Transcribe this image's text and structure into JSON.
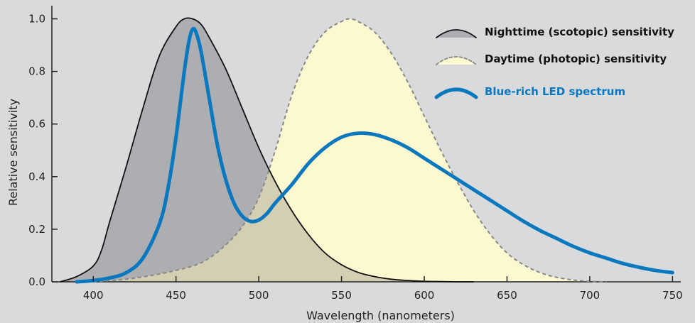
{
  "chart_data": {
    "type": "area",
    "title": "",
    "xlabel": "Wavelength (nanometers)",
    "ylabel": "Relative sensitivity",
    "xlim": [
      375,
      755
    ],
    "ylim": [
      0,
      1.05
    ],
    "x_ticks": [
      "400",
      "450",
      "500",
      "550",
      "600",
      "650",
      "700",
      "750"
    ],
    "y_ticks": [
      "0.0",
      "0.2",
      "0.4",
      "0.6",
      "0.8",
      "1.0"
    ],
    "grid": false,
    "legend_position": "top-right",
    "colors": {
      "scotopic_fill": "#adaeb2",
      "scotopic_line": "#111111",
      "photopic_fill": "#fcf8cf",
      "photopic_line": "#888888",
      "led_line": "#0a78be",
      "overlap_fill": "#d4cfb3"
    },
    "series": [
      {
        "name": "Nighttime (scotopic) sensitivity",
        "x": [
          380,
          390,
          400,
          405,
          410,
          420,
          430,
          440,
          450,
          455,
          460,
          465,
          470,
          480,
          490,
          500,
          510,
          520,
          530,
          540,
          550,
          560,
          570,
          580,
          590,
          600,
          610,
          620,
          630
        ],
        "values": [
          0.0,
          0.02,
          0.06,
          0.12,
          0.23,
          0.44,
          0.66,
          0.86,
          0.97,
          1.0,
          1.0,
          0.98,
          0.93,
          0.81,
          0.66,
          0.51,
          0.38,
          0.27,
          0.18,
          0.11,
          0.065,
          0.036,
          0.02,
          0.01,
          0.005,
          0.002,
          0.001,
          0.0,
          0.0
        ]
      },
      {
        "name": "Daytime (photopic) sensitivity",
        "x": [
          400,
          420,
          440,
          460,
          470,
          480,
          490,
          500,
          510,
          520,
          530,
          540,
          550,
          555,
          560,
          570,
          580,
          590,
          600,
          610,
          620,
          630,
          640,
          650,
          660,
          670,
          680,
          690,
          700,
          710
        ],
        "values": [
          0.0,
          0.01,
          0.03,
          0.06,
          0.09,
          0.14,
          0.21,
          0.32,
          0.5,
          0.71,
          0.86,
          0.95,
          0.99,
          1.0,
          0.99,
          0.95,
          0.87,
          0.76,
          0.63,
          0.5,
          0.38,
          0.27,
          0.18,
          0.11,
          0.065,
          0.035,
          0.017,
          0.007,
          0.002,
          0.0
        ]
      },
      {
        "name": "Blue-rich LED spectrum",
        "x": [
          390,
          400,
          410,
          420,
          430,
          440,
          445,
          450,
          455,
          458,
          460,
          462,
          465,
          470,
          475,
          480,
          485,
          490,
          495,
          500,
          505,
          510,
          520,
          530,
          540,
          550,
          560,
          570,
          580,
          590,
          600,
          610,
          620,
          630,
          640,
          650,
          660,
          670,
          680,
          690,
          700,
          710,
          720,
          730,
          740,
          750
        ],
        "values": [
          0.0,
          0.005,
          0.015,
          0.035,
          0.09,
          0.22,
          0.35,
          0.55,
          0.8,
          0.92,
          0.96,
          0.95,
          0.88,
          0.7,
          0.52,
          0.39,
          0.3,
          0.25,
          0.23,
          0.235,
          0.26,
          0.3,
          0.37,
          0.45,
          0.51,
          0.55,
          0.565,
          0.56,
          0.54,
          0.51,
          0.47,
          0.43,
          0.39,
          0.35,
          0.31,
          0.27,
          0.23,
          0.195,
          0.165,
          0.135,
          0.11,
          0.09,
          0.07,
          0.055,
          0.043,
          0.035
        ]
      }
    ]
  }
}
